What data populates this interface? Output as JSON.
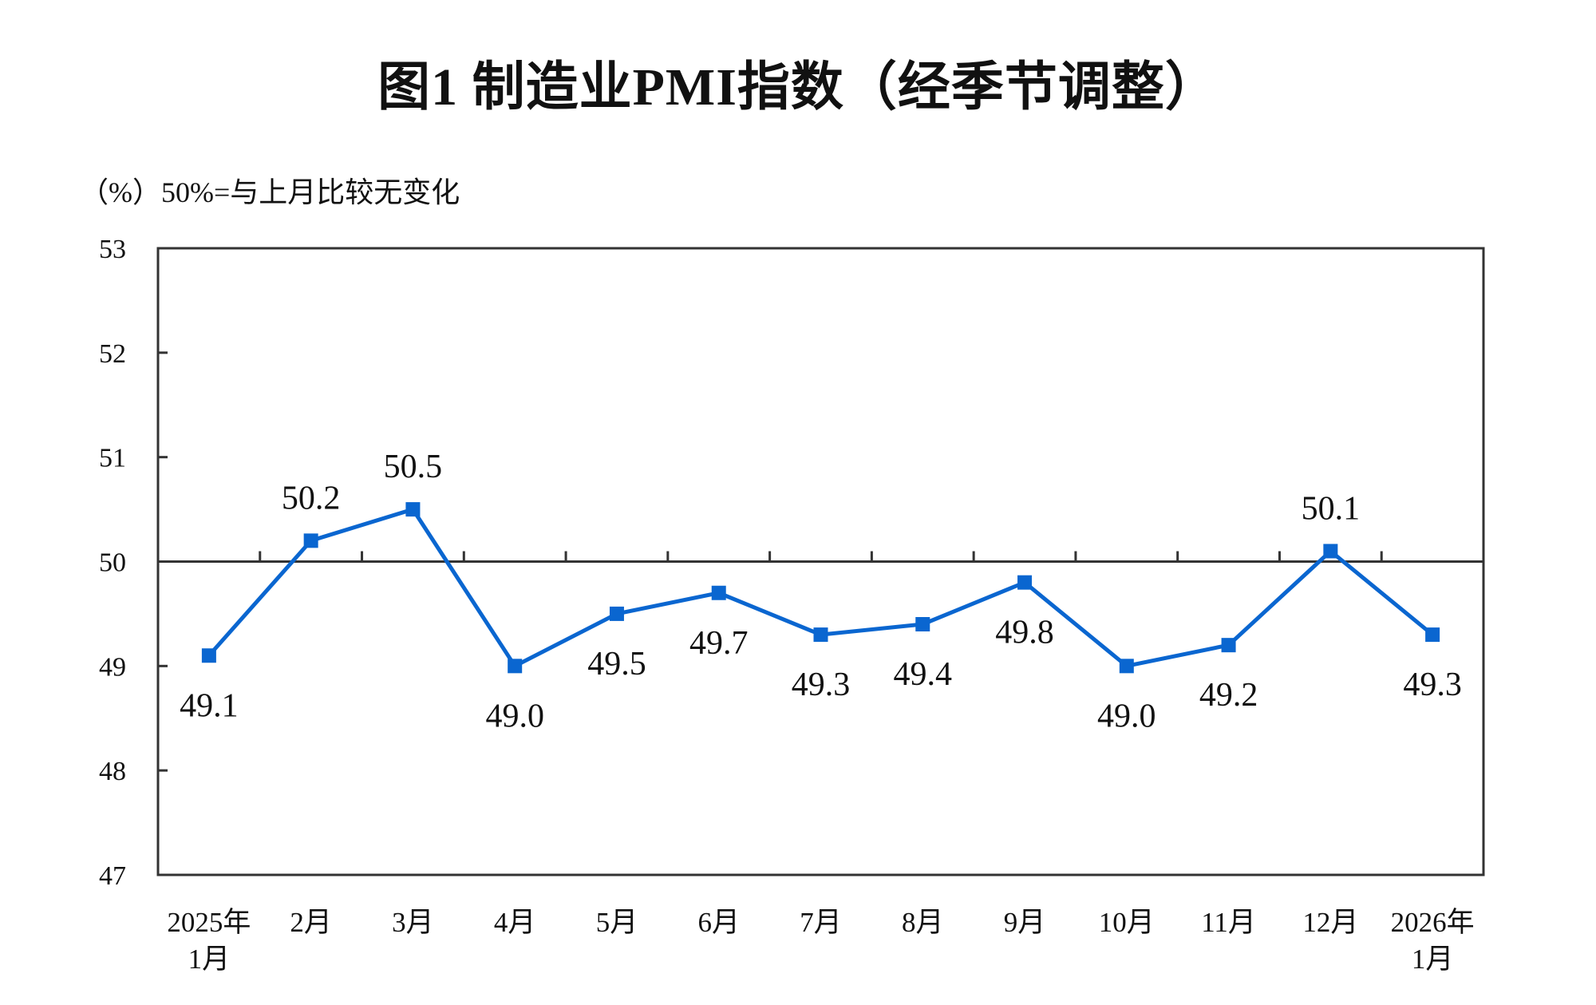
{
  "chart_data": {
    "type": "line",
    "title": "图1  制造业PMI指数（经季节调整）",
    "ylabel": "（%）50%=与上月比较无变化",
    "xlabel": "",
    "categories": [
      "2025年\n1月",
      "2月",
      "3月",
      "4月",
      "5月",
      "6月",
      "7月",
      "8月",
      "9月",
      "10月",
      "11月",
      "12月",
      "2026年\n1月"
    ],
    "values": [
      49.1,
      50.2,
      50.5,
      49.0,
      49.5,
      49.7,
      49.3,
      49.4,
      49.8,
      49.0,
      49.2,
      50.1,
      49.3
    ],
    "data_labels": [
      "49.1",
      "50.2",
      "50.5",
      "49.0",
      "49.5",
      "49.7",
      "49.3",
      "49.4",
      "49.8",
      "49.0",
      "49.2",
      "50.1",
      "49.3"
    ],
    "ylim": [
      47,
      53
    ],
    "yticks": [
      "47",
      "48",
      "49",
      "50",
      "51",
      "52",
      "53"
    ],
    "reference_line": 50,
    "grid": false,
    "series_color": "#0a66d0"
  }
}
